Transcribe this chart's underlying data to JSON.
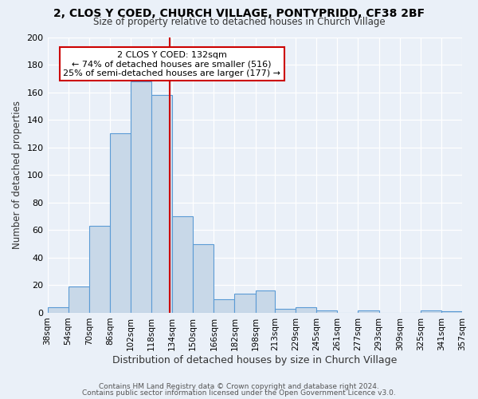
{
  "title": "2, CLOS Y COED, CHURCH VILLAGE, PONTYPRIDD, CF38 2BF",
  "subtitle": "Size of property relative to detached houses in Church Village",
  "xlabel": "Distribution of detached houses by size in Church Village",
  "ylabel": "Number of detached properties",
  "bar_color": "#c8d8e8",
  "bar_edge_color": "#5b9bd5",
  "background_color": "#eaf0f8",
  "grid_color": "#d0dce8",
  "vline_x": 132,
  "vline_color": "#cc0000",
  "bin_edges": [
    38,
    54,
    70,
    86,
    102,
    118,
    134,
    150,
    166,
    182,
    198,
    213,
    229,
    245,
    261,
    277,
    293,
    309,
    325,
    341,
    357
  ],
  "bin_heights": [
    4,
    19,
    63,
    130,
    168,
    158,
    70,
    50,
    10,
    14,
    16,
    3,
    4,
    2,
    0,
    2,
    0,
    0,
    2,
    1
  ],
  "ylim": [
    0,
    200
  ],
  "yticks": [
    0,
    20,
    40,
    60,
    80,
    100,
    120,
    140,
    160,
    180,
    200
  ],
  "xtick_labels": [
    "38sqm",
    "54sqm",
    "70sqm",
    "86sqm",
    "102sqm",
    "118sqm",
    "134sqm",
    "150sqm",
    "166sqm",
    "182sqm",
    "198sqm",
    "213sqm",
    "229sqm",
    "245sqm",
    "261sqm",
    "277sqm",
    "293sqm",
    "309sqm",
    "325sqm",
    "341sqm",
    "357sqm"
  ],
  "annotation_title": "2 CLOS Y COED: 132sqm",
  "annotation_line1": "← 74% of detached houses are smaller (516)",
  "annotation_line2": "25% of semi-detached houses are larger (177) →",
  "annotation_box_color": "white",
  "annotation_box_edge": "#cc0000",
  "footer1": "Contains HM Land Registry data © Crown copyright and database right 2024.",
  "footer2": "Contains public sector information licensed under the Open Government Licence v3.0."
}
